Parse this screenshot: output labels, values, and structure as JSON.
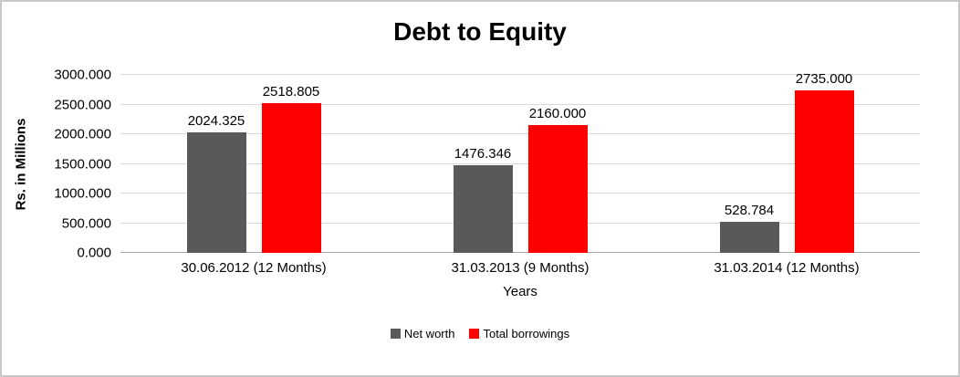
{
  "chart_data": {
    "type": "bar",
    "title": "Debt to Equity",
    "xlabel": "Years",
    "ylabel": "Rs. in Millions",
    "categories": [
      "30.06.2012 (12 Months)",
      "31.03.2013 (9 Months)",
      "31.03.2014 (12 Months)"
    ],
    "series": [
      {
        "name": "Net worth",
        "color": "#595959",
        "values": [
          2024.325,
          1476.346,
          528.784
        ]
      },
      {
        "name": "Total borrowings",
        "color": "#FF0000",
        "values": [
          2518.805,
          2160.0,
          2735.0
        ]
      }
    ],
    "value_decimals": 3,
    "data_labels": [
      [
        "2024.325",
        "1476.346",
        "528.784"
      ],
      [
        "2518.805",
        "2160.000",
        "2735.000"
      ]
    ],
    "y_ticks": [
      "3000.000",
      "2500.000",
      "2000.000",
      "1500.000",
      "1000.000",
      "500.000",
      "0.000"
    ],
    "ylim": [
      0,
      3000
    ],
    "grid": true,
    "legend_position": "bottom",
    "colors": {
      "grid": "#D9D9D9",
      "axis": "#A6A6A6",
      "frame_border": "#C8C8C8",
      "text": "#000000",
      "background": "#FFFFFF"
    }
  }
}
